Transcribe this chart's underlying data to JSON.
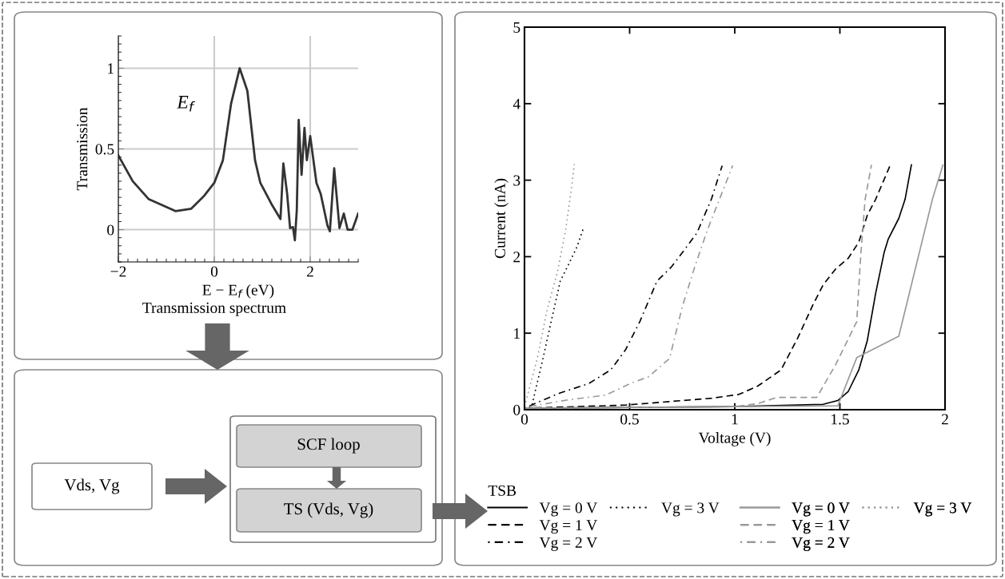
{
  "chart_data": [
    {
      "type": "line",
      "xlabel": "E − E$_{f}$ (eV)",
      "ylabel": "Transmission",
      "xlim": [
        -2,
        3
      ],
      "ylim": [
        -0.2,
        1.2
      ],
      "xticks": [
        {
          "value": -2,
          "label": "−2"
        },
        0,
        2
      ],
      "yticks": [
        0,
        0.5,
        1
      ],
      "grid": true,
      "annotations": [
        "E$_{f}$",
        "Transmission spectrum"
      ],
      "series": [
        {
          "color": "#333333",
          "line_style": "solid",
          "x": [
            -2,
            -1.7,
            -1.37,
            -0.81,
            -0.48,
            -0.21,
            0,
            0.18,
            0.35,
            0.53,
            0.69,
            0.85,
            0.96,
            1.19,
            1.38,
            1.44,
            1.52,
            1.58,
            1.64,
            1.68,
            1.72,
            1.76,
            1.82,
            1.88,
            1.93,
            2.0,
            2.13,
            2.22,
            2.36,
            2.41,
            2.5,
            2.61,
            2.7,
            2.78,
            2.88,
            3.0
          ],
          "values": [
            0.46,
            0.3,
            0.19,
            0.115,
            0.13,
            0.21,
            0.29,
            0.43,
            0.78,
            1.0,
            0.86,
            0.43,
            0.29,
            0.16,
            0.066,
            0.41,
            0.22,
            0.01,
            0.016,
            -0.066,
            0.12,
            0.68,
            0.34,
            0.63,
            0.43,
            0.58,
            0.29,
            0.22,
            0.025,
            -0.01,
            0.38,
            0.01,
            0.1,
            0.0,
            0.0,
            0.1
          ]
        }
      ]
    },
    {
      "type": "line",
      "xlabel": "Voltage (V)",
      "ylabel": "Current (nA)",
      "xlim": [
        0,
        2
      ],
      "ylim": [
        0,
        5
      ],
      "xticks": [
        0,
        0.5,
        1,
        1.5,
        2
      ],
      "yticks": [
        0,
        1,
        2,
        3,
        4,
        5
      ],
      "legend": "bottom",
      "legend_title": "TSB",
      "series": [
        {
          "name": "Vg = 0 V",
          "color": "#000000",
          "line_style": "solid",
          "x": [
            0,
            1.0,
            1.42,
            1.49,
            1.54,
            1.59,
            1.63,
            1.67,
            1.71,
            1.73,
            1.78,
            1.81,
            1.84
          ],
          "values": [
            0.02,
            0.04,
            0.07,
            0.12,
            0.24,
            0.52,
            0.9,
            1.52,
            2.05,
            2.23,
            2.5,
            2.75,
            3.2
          ]
        },
        {
          "name": "Vg = 1 V",
          "color": "#000000",
          "line_style": "dashed",
          "x": [
            0,
            0.48,
            0.89,
            1.02,
            1.11,
            1.22,
            1.3,
            1.37,
            1.42,
            1.48,
            1.54,
            1.59,
            1.63,
            1.67,
            1.74
          ],
          "values": [
            0.02,
            0.06,
            0.15,
            0.2,
            0.31,
            0.52,
            0.94,
            1.36,
            1.63,
            1.84,
            1.98,
            2.19,
            2.54,
            2.75,
            3.2
          ]
        },
        {
          "name": "Vg = 2 V",
          "color": "#000000",
          "line_style": "dashdot",
          "x": [
            0,
            0.075,
            0.17,
            0.305,
            0.41,
            0.48,
            0.55,
            0.63,
            0.7,
            0.75,
            0.82,
            0.89,
            0.94
          ],
          "values": [
            0.02,
            0.11,
            0.22,
            0.34,
            0.52,
            0.78,
            1.16,
            1.68,
            1.87,
            2.05,
            2.31,
            2.76,
            3.19
          ]
        },
        {
          "name": "Vg = 3 V",
          "color": "#000000",
          "line_style": "dotted",
          "x": [
            0,
            0.034,
            0.088,
            0.13,
            0.17,
            0.21,
            0.25,
            0.28
          ],
          "values": [
            0.02,
            0.04,
            0.67,
            1.19,
            1.68,
            1.9,
            2.13,
            2.37
          ]
        },
        {
          "name": "Vg = 0 V",
          "color": "#999999",
          "line_style": "solid",
          "x": [
            0,
            1.49,
            1.58,
            1.78,
            1.94,
            1.99
          ],
          "values": [
            0.02,
            0.05,
            0.68,
            0.96,
            2.75,
            3.2
          ]
        },
        {
          "name": "Vg = 1 V",
          "color": "#999999",
          "line_style": "dashed",
          "x": [
            0,
            1.0,
            1.11,
            1.2,
            1.39,
            1.48,
            1.58,
            1.6,
            1.62,
            1.65
          ],
          "values": [
            0.02,
            0.04,
            0.08,
            0.16,
            0.16,
            0.59,
            1.15,
            2.05,
            2.75,
            3.2
          ]
        },
        {
          "name": "Vg = 2 V",
          "color": "#999999",
          "line_style": "dashdot",
          "x": [
            0,
            0.21,
            0.386,
            0.51,
            0.59,
            0.69,
            0.75,
            0.81,
            0.87,
            0.99
          ],
          "values": [
            0.03,
            0.13,
            0.19,
            0.35,
            0.43,
            0.67,
            1.34,
            1.87,
            2.35,
            3.19
          ]
        },
        {
          "name": "Vg = 3 V",
          "color": "#999999",
          "line_style": "dotted",
          "x": [
            0,
            0.061,
            0.108,
            0.156,
            0.196,
            0.224,
            0.237
          ],
          "values": [
            0.04,
            0.67,
            1.31,
            1.79,
            2.35,
            2.91,
            3.21
          ]
        }
      ]
    },
    {
      "type": "other",
      "annotations": [
        "Vds, Vg",
        "SCF loop",
        "TS (Vds, Vg)"
      ]
    }
  ]
}
